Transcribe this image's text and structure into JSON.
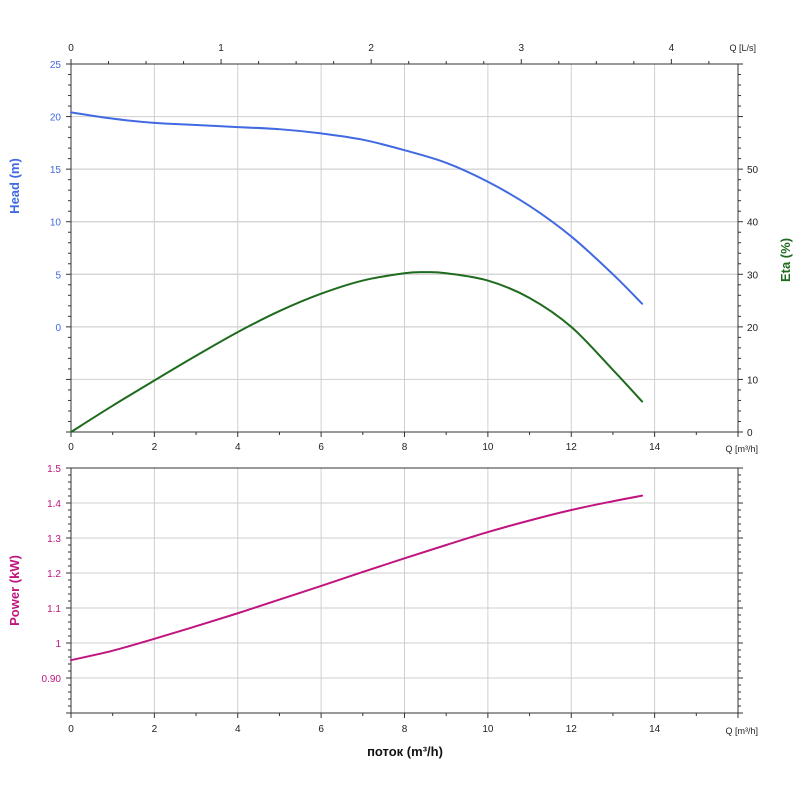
{
  "chart_data": [
    {
      "type": "line",
      "name": "pump-head-efficiency",
      "x_bottom": {
        "label": "Q [m³/h]",
        "range": [
          0,
          16
        ],
        "ticks": [
          0,
          2,
          4,
          6,
          8,
          10,
          12,
          14
        ]
      },
      "x_top": {
        "label": "Q [L/s]",
        "range": [
          0,
          4.444
        ],
        "ticks": [
          0,
          1,
          2,
          3,
          4
        ]
      },
      "y_left": {
        "label": "Head (m)",
        "range": [
          -10,
          25
        ],
        "ticks": [
          0,
          5,
          10,
          15,
          20,
          25
        ],
        "color": "#4169e1"
      },
      "y_right": {
        "label": "Eta (%)",
        "range": [
          0,
          70
        ],
        "ticks": [
          0,
          10,
          20,
          30,
          40,
          50
        ],
        "color": "#1e6b1e"
      },
      "grid": true,
      "series": [
        {
          "name": "Head",
          "axis": "left",
          "color": "#4169e1",
          "x": [
            0,
            1,
            2,
            3,
            4,
            5,
            6,
            7,
            8,
            9,
            10,
            11,
            12,
            13,
            13.7
          ],
          "y": [
            20.4,
            19.8,
            19.4,
            19.2,
            19.0,
            18.8,
            18.4,
            17.8,
            16.8,
            15.6,
            13.8,
            11.5,
            8.6,
            5.0,
            2.2
          ]
        },
        {
          "name": "Eta",
          "axis": "right",
          "color": "#1e6b1e",
          "x": [
            0,
            1,
            2,
            3,
            4,
            5,
            6,
            7,
            8,
            8.5,
            9,
            10,
            11,
            12,
            13,
            13.7
          ],
          "y": [
            0,
            5,
            9.8,
            14.5,
            19.0,
            23.0,
            26.3,
            28.8,
            30.2,
            30.4,
            30.2,
            28.8,
            25.5,
            20.0,
            11.8,
            5.8
          ]
        }
      ]
    },
    {
      "type": "line",
      "name": "pump-power",
      "x_bottom": {
        "label": "Q [m³/h]",
        "range": [
          0,
          16
        ],
        "ticks": [
          0,
          2,
          4,
          6,
          8,
          10,
          12,
          14
        ]
      },
      "y_left": {
        "label": "Power (kW)",
        "range": [
          0.8,
          1.5
        ],
        "ticks": [
          0.9,
          1,
          1.1,
          1.2,
          1.3,
          1.4,
          1.5
        ],
        "tick_labels": [
          "0.90",
          "1",
          "1.1",
          "1.2",
          "1.3",
          "1.4",
          "1.5"
        ],
        "color": "#c0157e"
      },
      "grid": true,
      "series": [
        {
          "name": "Power",
          "axis": "left",
          "color": "#c0157e",
          "x": [
            0,
            1,
            2,
            3,
            4,
            5,
            6,
            7,
            8,
            9,
            10,
            11,
            12,
            13,
            13.7
          ],
          "y": [
            0.951,
            0.978,
            1.012,
            1.048,
            1.085,
            1.124,
            1.163,
            1.203,
            1.242,
            1.28,
            1.317,
            1.35,
            1.38,
            1.405,
            1.421
          ]
        }
      ],
      "xlabel": "поток (m³/h)"
    }
  ]
}
